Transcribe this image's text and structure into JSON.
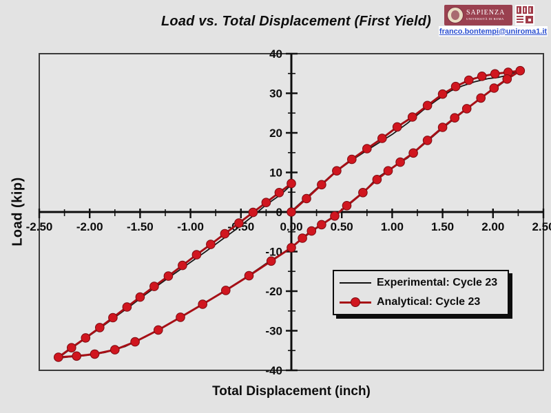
{
  "title": "Load vs. Total Displacement (First Yield)",
  "logo": {
    "name": "SAPIENZA",
    "subtitle": "UNIVERSITÀ DI ROMA",
    "brand_color": "#9a4150"
  },
  "email": "franco.bontempi@uniroma1.it",
  "email_color": "#2b4fd0",
  "chart_data": {
    "type": "line",
    "title": "Load vs. Total Displacement (First Yield)",
    "xlabel": "Total Displacement (inch)",
    "ylabel": "Load (kip)",
    "xlim": [
      -2.5,
      2.5
    ],
    "ylim": [
      -40,
      40
    ],
    "grid": false,
    "axes_cross_at_zero": true,
    "xticks": {
      "values": [
        -2.5,
        -2.0,
        -1.5,
        -1.0,
        -0.5,
        0.0,
        0.5,
        1.0,
        1.5,
        2.0,
        2.5
      ],
      "labels": [
        "-2.50",
        "-2.00",
        "-1.50",
        "-1.00",
        "-0.50",
        "0.00",
        "0.50",
        "1.00",
        "1.50",
        "2.00",
        "2.50"
      ]
    },
    "yticks": {
      "values": [
        -40,
        -30,
        -20,
        -10,
        0,
        10,
        20,
        30,
        40
      ],
      "labels": [
        "-40",
        "-30",
        "-20",
        "-10",
        "0",
        "10",
        "20",
        "30",
        "40"
      ]
    },
    "minor_x_step": 0.25,
    "minor_y_step": 5,
    "legend_position": "inside lower right",
    "series": [
      {
        "name": "Experimental: Cycle 23",
        "color": "#161616",
        "width": 1.8,
        "marker": false,
        "points": [
          [
            0,
            0.2
          ],
          [
            0.2,
            4.8
          ],
          [
            0.4,
            9.4
          ],
          [
            0.6,
            13.1
          ],
          [
            0.8,
            16.4
          ],
          [
            1.0,
            19.6
          ],
          [
            1.15,
            22.4
          ],
          [
            1.3,
            25.6
          ],
          [
            1.45,
            28.4
          ],
          [
            1.58,
            30.6
          ],
          [
            1.7,
            31.9
          ],
          [
            1.82,
            32.9
          ],
          [
            1.95,
            33.7
          ],
          [
            2.05,
            34.0
          ],
          [
            2.15,
            34.6
          ],
          [
            2.27,
            35.8
          ],
          [
            2.18,
            34.2
          ],
          [
            2.05,
            31.8
          ],
          [
            1.9,
            29.2
          ],
          [
            1.75,
            26.2
          ],
          [
            1.6,
            23.2
          ],
          [
            1.45,
            20.1
          ],
          [
            1.3,
            16.8
          ],
          [
            1.15,
            13.6
          ],
          [
            1.0,
            11.2
          ],
          [
            0.85,
            8.6
          ],
          [
            0.7,
            4.6
          ],
          [
            0.55,
            1.4
          ],
          [
            0.4,
            -1.6
          ],
          [
            0.25,
            -4.1
          ],
          [
            0.1,
            -6.9
          ],
          [
            -0.05,
            -9.8
          ],
          [
            -0.25,
            -13.0
          ],
          [
            -0.45,
            -16.5
          ],
          [
            -0.65,
            -19.7
          ],
          [
            -0.85,
            -22.8
          ],
          [
            -1.05,
            -25.8
          ],
          [
            -1.25,
            -28.8
          ],
          [
            -1.45,
            -31.6
          ],
          [
            -1.65,
            -34.0
          ],
          [
            -1.85,
            -35.5
          ],
          [
            -2.05,
            -36.3
          ],
          [
            -2.2,
            -36.6
          ],
          [
            -2.31,
            -36.9
          ],
          [
            -2.2,
            -34.8
          ],
          [
            -2.05,
            -32.1
          ],
          [
            -1.9,
            -29.4
          ],
          [
            -1.75,
            -26.6
          ],
          [
            -1.6,
            -23.8
          ],
          [
            -1.45,
            -20.9
          ],
          [
            -1.3,
            -18.1
          ],
          [
            -1.15,
            -15.4
          ],
          [
            -1.0,
            -12.7
          ],
          [
            -0.85,
            -10.0
          ],
          [
            -0.7,
            -7.2
          ],
          [
            -0.55,
            -4.4
          ],
          [
            -0.4,
            -1.4
          ],
          [
            -0.25,
            1.8
          ],
          [
            -0.1,
            4.5
          ],
          [
            0,
            6.9
          ]
        ]
      },
      {
        "name": "Analytical: Cycle 23",
        "color": "#a60f16",
        "width": 3,
        "marker": true,
        "marker_color": "#d0161f",
        "marker_edge": "#7a0a10",
        "marker_radius": 6.3,
        "points": [
          [
            0,
            0
          ],
          [
            0.15,
            3.4
          ],
          [
            0.3,
            6.9
          ],
          [
            0.45,
            10.4
          ],
          [
            0.6,
            13.3
          ],
          [
            0.75,
            16.0
          ],
          [
            0.9,
            18.6
          ],
          [
            1.05,
            21.5
          ],
          [
            1.2,
            24.0
          ],
          [
            1.35,
            26.9
          ],
          [
            1.5,
            29.8
          ],
          [
            1.63,
            31.7
          ],
          [
            1.76,
            33.3
          ],
          [
            1.89,
            34.3
          ],
          [
            2.02,
            34.9
          ],
          [
            2.15,
            35.3
          ],
          [
            2.27,
            35.7
          ],
          [
            2.14,
            33.6
          ],
          [
            2.01,
            31.3
          ],
          [
            1.88,
            28.8
          ],
          [
            1.74,
            26.1
          ],
          [
            1.62,
            23.8
          ],
          [
            1.5,
            21.4
          ],
          [
            1.35,
            18.1
          ],
          [
            1.21,
            14.9
          ],
          [
            1.08,
            12.6
          ],
          [
            0.96,
            10.4
          ],
          [
            0.85,
            8.2
          ],
          [
            0.71,
            4.9
          ],
          [
            0.55,
            1.6
          ],
          [
            0.43,
            -1.0
          ],
          [
            0.3,
            -3.2
          ],
          [
            0.2,
            -4.8
          ],
          [
            0.11,
            -6.6
          ],
          [
            0,
            -9.0
          ],
          [
            -0.2,
            -12.4
          ],
          [
            -0.42,
            -16.1
          ],
          [
            -0.65,
            -19.8
          ],
          [
            -0.88,
            -23.3
          ],
          [
            -1.1,
            -26.6
          ],
          [
            -1.32,
            -29.8
          ],
          [
            -1.55,
            -32.8
          ],
          [
            -1.75,
            -34.8
          ],
          [
            -1.95,
            -35.9
          ],
          [
            -2.13,
            -36.4
          ],
          [
            -2.31,
            -36.7
          ],
          [
            -2.18,
            -34.3
          ],
          [
            -2.04,
            -31.8
          ],
          [
            -1.9,
            -29.2
          ],
          [
            -1.77,
            -26.7
          ],
          [
            -1.63,
            -24.0
          ],
          [
            -1.5,
            -21.5
          ],
          [
            -1.36,
            -18.8
          ],
          [
            -1.22,
            -16.2
          ],
          [
            -1.08,
            -13.5
          ],
          [
            -0.94,
            -10.8
          ],
          [
            -0.8,
            -8.2
          ],
          [
            -0.66,
            -5.5
          ],
          [
            -0.52,
            -2.8
          ],
          [
            -0.38,
            -0.1
          ],
          [
            -0.25,
            2.4
          ],
          [
            -0.12,
            4.9
          ],
          [
            0,
            7.2
          ]
        ]
      }
    ]
  }
}
